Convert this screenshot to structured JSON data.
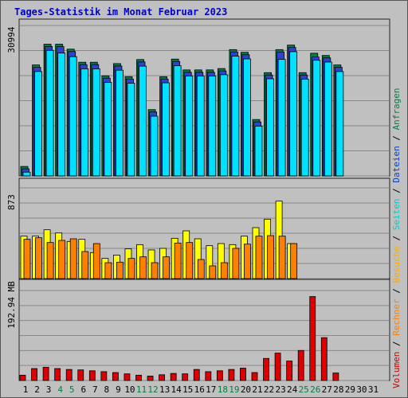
{
  "title": "Tages-Statistik im Monat Februar 2023",
  "right_label": [
    {
      "text": "Volumen",
      "color": "#cc0000"
    },
    {
      "text": " / ",
      "color": "#000000"
    },
    {
      "text": "Rechner",
      "color": "#ff8000"
    },
    {
      "text": " / ",
      "color": "#000000"
    },
    {
      "text": "Besuche",
      "color": "#ffaa00"
    },
    {
      "text": " / ",
      "color": "#000000"
    },
    {
      "text": "Seiten",
      "color": "#00cccc"
    },
    {
      "text": " / ",
      "color": "#000000"
    },
    {
      "text": "Dateien",
      "color": "#0040cc"
    },
    {
      "text": " / ",
      "color": "#000000"
    },
    {
      "text": "Anfragen",
      "color": "#008040"
    }
  ],
  "colors": {
    "background": "#c0c0c0",
    "anfragen": "#008040",
    "dateien": "#3040d0",
    "seiten": "#00e0ff",
    "besuche": "#ffff00",
    "rechner": "#ff8000",
    "volumen": "#dd0000",
    "weekend_label": "#008040"
  },
  "chart_data": [
    {
      "type": "bar",
      "name": "requests",
      "ytick_label": "30994",
      "ylim": [
        0,
        33000
      ],
      "categories": [
        "1",
        "2",
        "3",
        "4",
        "5",
        "6",
        "7",
        "8",
        "9",
        "10",
        "11",
        "12",
        "13",
        "14",
        "15",
        "16",
        "17",
        "18",
        "19",
        "20",
        "21",
        "22",
        "23",
        "24",
        "25",
        "26",
        "27",
        "28",
        "29",
        "30",
        "31"
      ],
      "weekend_days": [
        4,
        5,
        11,
        12,
        18,
        19,
        25,
        26
      ],
      "series": [
        {
          "key": "anfragen",
          "values": [
            2100,
            24600,
            29200,
            29200,
            28100,
            25200,
            25200,
            22200,
            24900,
            22000,
            25800,
            14700,
            22000,
            25900,
            23500,
            23500,
            23500,
            23800,
            28000,
            27400,
            12500,
            22900,
            28000,
            29000,
            22900,
            27200,
            26700,
            24600,
            0,
            0,
            0
          ]
        },
        {
          "key": "dateien",
          "values": [
            2100,
            24600,
            29200,
            29200,
            28100,
            25200,
            25200,
            22200,
            24900,
            22000,
            25800,
            14700,
            22000,
            25900,
            23500,
            23500,
            23500,
            23800,
            28000,
            27400,
            12500,
            22900,
            28000,
            29000,
            22900,
            26900,
            26700,
            24600,
            0,
            0,
            0
          ]
        },
        {
          "key": "seiten",
          "values": [
            1900,
            24200,
            28900,
            28300,
            27500,
            24800,
            24800,
            21800,
            24500,
            21600,
            25400,
            14300,
            21700,
            25500,
            23200,
            23200,
            23200,
            23500,
            27600,
            27000,
            12100,
            22600,
            26900,
            28600,
            22500,
            26700,
            26300,
            24200,
            0,
            0,
            0
          ]
        }
      ]
    },
    {
      "type": "bar",
      "name": "visits",
      "ytick_label": "873",
      "ylim": [
        0,
        930
      ],
      "series": [
        {
          "key": "besuche",
          "values": [
            400,
            400,
            460,
            430,
            350,
            370,
            245,
            190,
            220,
            280,
            320,
            270,
            285,
            380,
            450,
            375,
            310,
            330,
            320,
            400,
            480,
            560,
            730,
            330,
            0,
            0,
            0,
            0,
            0,
            0,
            0
          ]
        },
        {
          "key": "rechner",
          "values": [
            370,
            385,
            340,
            360,
            375,
            255,
            330,
            150,
            155,
            190,
            205,
            150,
            205,
            335,
            340,
            180,
            120,
            150,
            285,
            325,
            400,
            405,
            400,
            330,
            0,
            0,
            0,
            0,
            0,
            0,
            0
          ]
        }
      ]
    },
    {
      "type": "bar",
      "name": "volume",
      "ytick_label": "192.94 MB",
      "ylim": [
        0,
        200
      ],
      "series": [
        {
          "key": "volumen",
          "values": [
            12,
            27,
            30,
            27,
            25,
            24,
            22,
            20,
            18,
            15,
            12,
            10,
            13,
            16,
            15,
            25,
            20,
            22,
            25,
            28,
            18,
            50,
            62,
            44,
            68,
            190,
            97,
            17,
            0,
            0,
            0
          ]
        }
      ]
    }
  ]
}
